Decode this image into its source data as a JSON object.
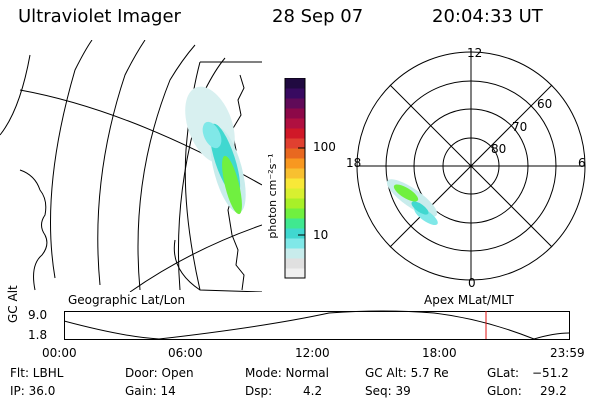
{
  "header": {
    "instrument": "Ultraviolet Imager",
    "date": "28 Sep 07",
    "time": "20:04:33 UT"
  },
  "colorbar": {
    "unit_label": "photon cm⁻²s⁻¹",
    "tick_labels": [
      "100",
      "10"
    ],
    "colors": [
      "#f0f0f0",
      "#e0e0e0",
      "#c8ecec",
      "#80e8e8",
      "#40d8d0",
      "#40e890",
      "#70f040",
      "#a8f028",
      "#d8f030",
      "#f8e838",
      "#f8c030",
      "#f89820",
      "#e86820",
      "#e04030",
      "#d01828",
      "#b01040",
      "#8c0848",
      "#600a58",
      "#380a60",
      "#200a40"
    ]
  },
  "polar": {
    "clock_labels": [
      "12",
      "18",
      "6",
      "0"
    ],
    "lat_labels": [
      "60",
      "70",
      "80"
    ]
  },
  "timeline": {
    "axis_title": "GC Alt",
    "y_labels": [
      "9.0",
      "1.8"
    ],
    "left_caption": "Geographic Lat/Lon",
    "right_caption": "Apex MLat/MLT",
    "time_labels": [
      "00:00",
      "06:00",
      "12:00",
      "18:00",
      "23:59"
    ],
    "marker_color": "#e01010"
  },
  "info": {
    "flt": "Flt: LBHL",
    "ip": "IP: 36.0",
    "door": "Door: Open",
    "gain": "Gain: 14",
    "mode": "Mode: Normal",
    "dsp_label": "Dsp:",
    "dsp_value": "4.2",
    "gcalt": "GC Alt: 5.7 Re",
    "seq": "Seq: 39",
    "glat_label": "GLat:",
    "glat_value": "−51.2",
    "glon_label": "GLon:",
    "glon_value": "29.2"
  }
}
